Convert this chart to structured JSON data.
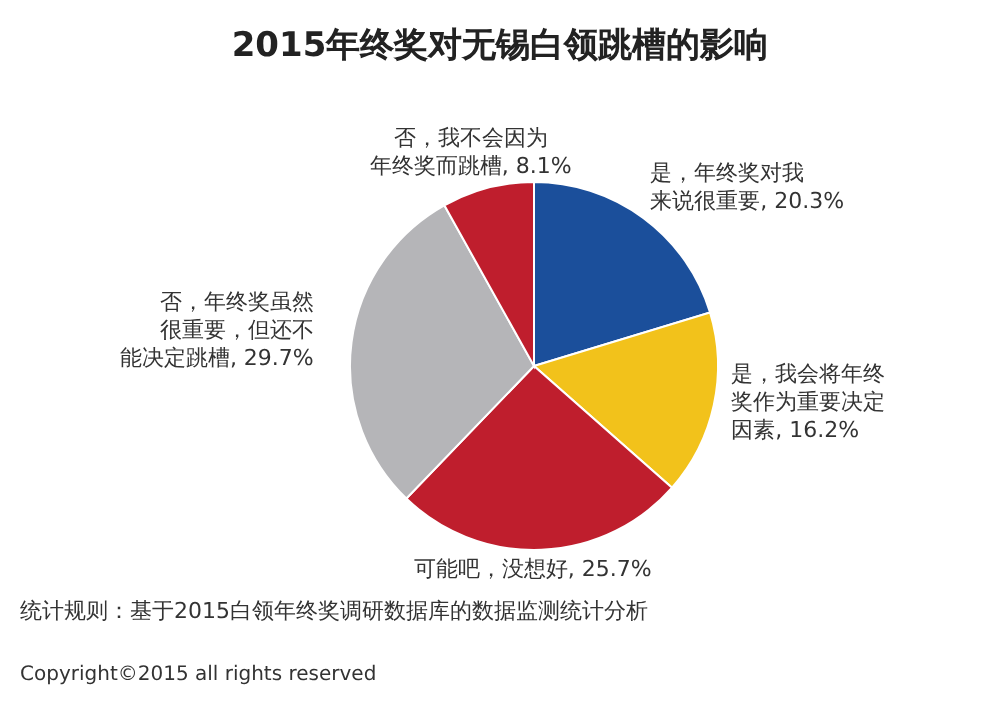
{
  "chart_data": {
    "type": "pie",
    "title": "2015年终奖对无锡白领跳槽的影响",
    "categories": [
      "是，年终奖对我来说很重要",
      "是，我会将年终奖作为重要决定因素",
      "可能吧，没想好",
      "否，年终奖虽然很重要，但还不能决定跳槽",
      "否，我不会因为年终奖而跳槽"
    ],
    "values": [
      20.3,
      16.2,
      25.7,
      29.7,
      8.1
    ],
    "value_labels": [
      "20.3%",
      "16.2%",
      "25.7%",
      "29.7%",
      "8.1%"
    ],
    "colors": [
      "#1b4f9b",
      "#f2c21b",
      "#bf1e2d",
      "#b5b5b8",
      "#bf1e2d"
    ],
    "legend": false,
    "annotations": [
      "统计规则：基于2015白领年终奖调研数据库的数据监测统计分析",
      "Copyright©2015 all rights reserved"
    ]
  }
}
